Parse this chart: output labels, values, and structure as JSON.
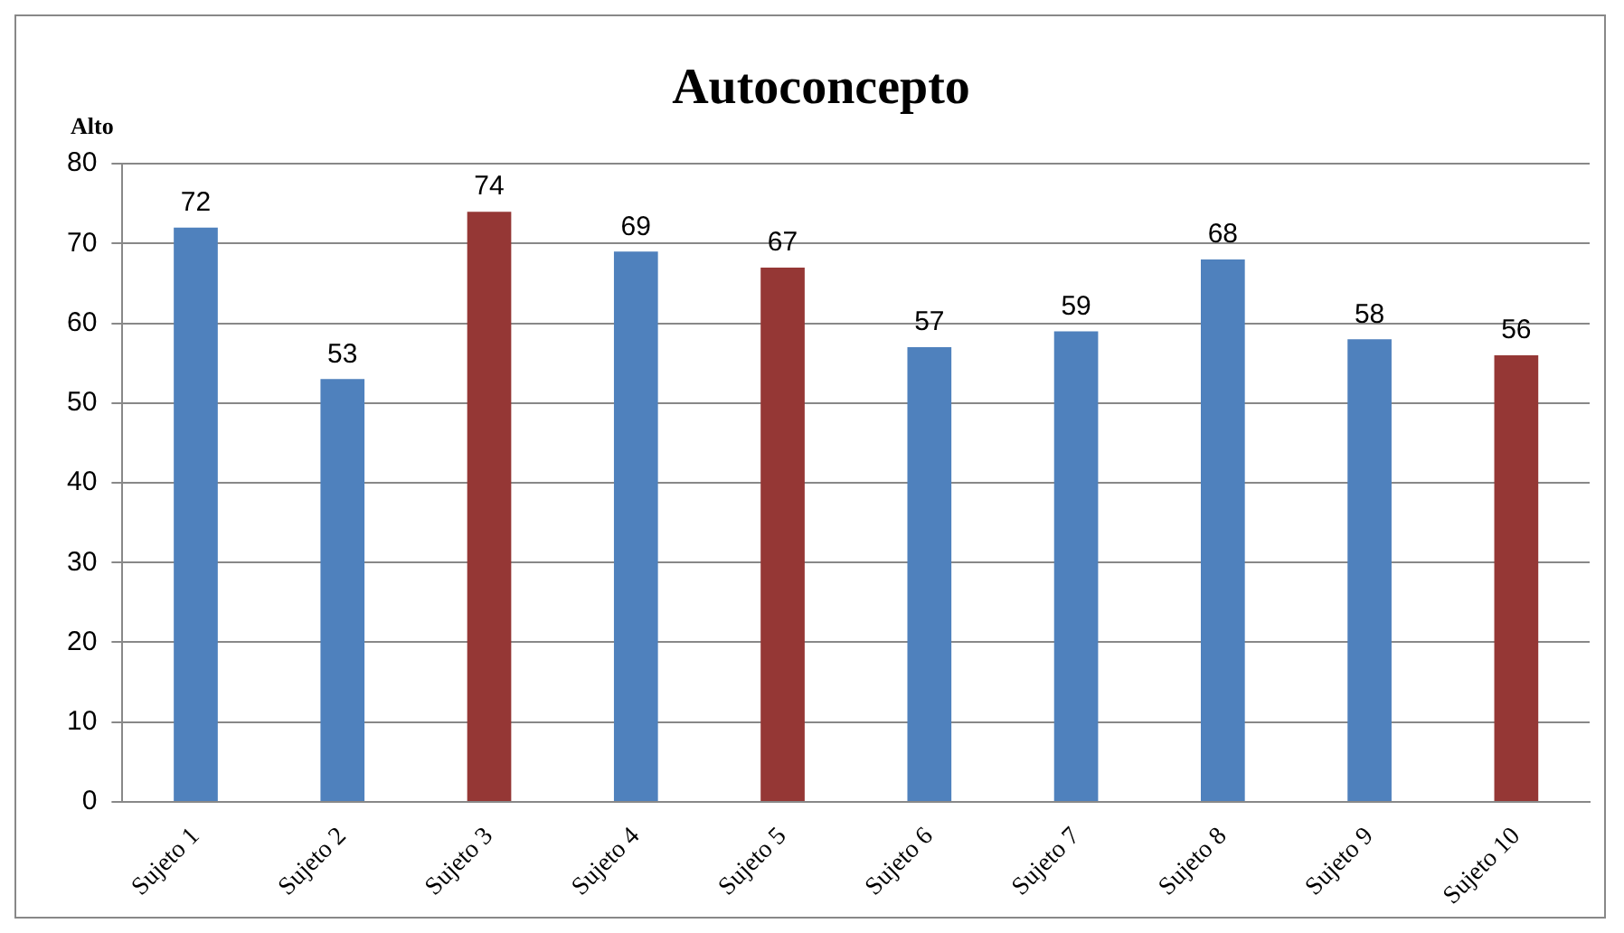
{
  "chart_data": {
    "type": "bar",
    "title": "Autoconcepto",
    "ylabel": "Alto",
    "categories": [
      "Sujeto 1",
      "Sujeto 2",
      "Sujeto 3",
      "Sujeto 4",
      "Sujeto 5",
      "Sujeto 6",
      "Sujeto 7",
      "Sujeto 8",
      "Sujeto 9",
      "Sujeto 10"
    ],
    "values": [
      72,
      53,
      74,
      69,
      67,
      57,
      59,
      68,
      58,
      56
    ],
    "colors": [
      "#4f81bd",
      "#4f81bd",
      "#953735",
      "#4f81bd",
      "#953735",
      "#4f81bd",
      "#4f81bd",
      "#4f81bd",
      "#4f81bd",
      "#953735"
    ],
    "ylim": [
      0,
      80
    ],
    "yticks": [
      0,
      10,
      20,
      30,
      40,
      50,
      60,
      70,
      80
    ],
    "grid": "y",
    "data_labels": true,
    "legend": false
  }
}
